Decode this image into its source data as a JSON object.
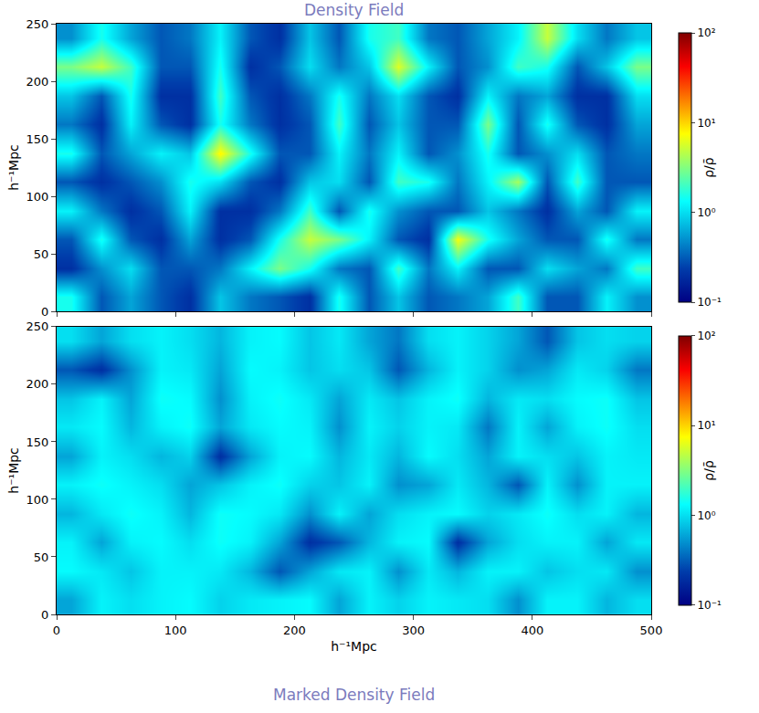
{
  "chart_data": [
    {
      "type": "heatmap",
      "title": "Density Field",
      "ylabel": "h⁻¹Mpc",
      "color": "Jet",
      "log": true,
      "tick_labels": "y",
      "xlim": [
        0,
        500
      ],
      "ylim": [
        0,
        250
      ],
      "xticks": [
        0,
        100,
        200,
        300,
        400,
        500
      ],
      "yticks": [
        0,
        50,
        100,
        150,
        200,
        250
      ],
      "x": [
        12.5,
        37.5,
        62.5,
        87.5,
        112.5,
        137.5,
        162.5,
        187.5,
        212.5,
        237.5,
        262.5,
        287.5,
        312.5,
        337.5,
        362.5,
        387.5,
        412.5,
        437.5,
        462.5,
        487.5
      ],
      "y": [
        12.5,
        37.5,
        62.5,
        87.5,
        112.5,
        137.5,
        162.5,
        187.5,
        212.5,
        237.5
      ],
      "cells": [
        [
          1.5,
          0.3,
          0.6,
          0.3,
          0.2,
          0.8,
          0.4,
          0.3,
          0.2,
          1.5,
          0.3,
          0.8,
          0.3,
          0.4,
          0.6,
          2,
          0.3,
          0.3,
          1.2,
          0.5
        ],
        [
          0.2,
          0.5,
          1,
          0.3,
          0.3,
          0.4,
          1.2,
          3,
          1.5,
          0.4,
          0.3,
          2,
          0.4,
          1.2,
          0.3,
          0.3,
          1,
          0.6,
          0.4,
          2
        ],
        [
          0.3,
          1.5,
          0.3,
          0.2,
          0.6,
          0.2,
          0.3,
          1.5,
          5,
          3,
          1.2,
          0.3,
          0.2,
          7,
          1.5,
          0.6,
          0.3,
          0.3,
          1.5,
          0.4
        ],
        [
          1.2,
          0.4,
          0.2,
          0.3,
          1.2,
          0.2,
          0.2,
          0.4,
          2,
          0.3,
          1.5,
          0.5,
          0.3,
          0.3,
          0.8,
          0.4,
          0.2,
          0.6,
          0.3,
          1.2
        ],
        [
          0.3,
          0.2,
          0.3,
          0.5,
          1.5,
          1,
          0.3,
          0.2,
          0.8,
          1,
          0.3,
          2,
          1.5,
          0.4,
          1.2,
          4,
          0.3,
          2,
          0.3,
          0.3
        ],
        [
          1.5,
          0.3,
          0.6,
          1.2,
          0.8,
          8,
          1.5,
          0.3,
          0.3,
          1.2,
          0.4,
          1.2,
          0.3,
          0.5,
          1.5,
          0.3,
          0.5,
          1,
          0.3,
          0.4
        ],
        [
          0.4,
          0.2,
          1.2,
          0.3,
          0.2,
          1.5,
          0.4,
          0.2,
          0.3,
          2,
          0.3,
          0.8,
          0.3,
          0.3,
          3,
          0.3,
          1.5,
          0.3,
          0.2,
          0.6
        ],
        [
          0.8,
          0.3,
          1.5,
          0.2,
          0.2,
          2,
          0.3,
          0.2,
          0.4,
          1.5,
          0.4,
          1,
          0.3,
          0.2,
          1.2,
          0.4,
          0.6,
          0.2,
          0.2,
          1
        ],
        [
          3,
          5,
          2,
          0.3,
          0.3,
          1.5,
          0.2,
          0.3,
          1,
          0.4,
          0.8,
          6,
          1.2,
          0.3,
          0.5,
          2,
          1.5,
          0.3,
          0.8,
          3
        ],
        [
          0.5,
          1.5,
          0.6,
          0.3,
          0.4,
          1.2,
          0.3,
          0.2,
          0.8,
          0.3,
          1.5,
          2,
          0.4,
          0.3,
          0.6,
          1.2,
          5,
          1,
          0.4,
          0.8
        ]
      ],
      "colorbar": {
        "label": "ρ/ρ̄",
        "range": [
          0.1,
          100
        ],
        "ticks": [
          {
            "value": 0.1,
            "label": "10⁻¹"
          },
          {
            "value": 1,
            "label": "10⁰"
          },
          {
            "value": 10,
            "label": "10¹"
          },
          {
            "value": 100,
            "label": "10²"
          }
        ]
      }
    },
    {
      "type": "heatmap",
      "title": "Marked Density Field",
      "xlabel": "h⁻¹Mpc",
      "ylabel": "h⁻¹Mpc",
      "color": "Jet",
      "log": true,
      "xlim": [
        0,
        500
      ],
      "ylim": [
        0,
        250
      ],
      "xticks": [
        0,
        100,
        200,
        300,
        400,
        500
      ],
      "yticks": [
        0,
        50,
        100,
        150,
        200,
        250
      ],
      "x": [
        12.5,
        37.5,
        62.5,
        87.5,
        112.5,
        137.5,
        162.5,
        187.5,
        212.5,
        237.5,
        262.5,
        287.5,
        312.5,
        337.5,
        362.5,
        387.5,
        412.5,
        437.5,
        462.5,
        487.5
      ],
      "y": [
        12.5,
        37.5,
        62.5,
        87.5,
        112.5,
        137.5,
        162.5,
        187.5,
        212.5,
        237.5
      ],
      "cells": [
        [
          0.6,
          1.2,
          1,
          1.2,
          1.3,
          0.9,
          1.1,
          1.2,
          1.3,
          0.6,
          1.2,
          0.9,
          1.2,
          1.1,
          1,
          0.5,
          1.2,
          1.2,
          0.7,
          1
        ],
        [
          1.3,
          1.1,
          0.8,
          1.2,
          1.2,
          1.1,
          0.7,
          0.3,
          0.6,
          1.1,
          1.2,
          0.5,
          1.1,
          0.7,
          1.2,
          1.2,
          0.8,
          1,
          1.1,
          0.5
        ],
        [
          1.2,
          0.6,
          1.2,
          1.3,
          1,
          1.4,
          1.2,
          0.6,
          0.2,
          0.3,
          0.7,
          1.2,
          1.3,
          0.2,
          0.6,
          1,
          1.2,
          1.2,
          0.6,
          1.1
        ],
        [
          0.7,
          1.1,
          1.4,
          1.2,
          0.7,
          1.4,
          1.3,
          1.1,
          0.5,
          1.2,
          0.6,
          1,
          1.2,
          1.3,
          0.9,
          1.1,
          1.4,
          1,
          1.2,
          0.7
        ],
        [
          1.2,
          1.4,
          1.2,
          1,
          0.6,
          0.8,
          1.2,
          1.4,
          0.9,
          0.8,
          1.2,
          0.5,
          0.6,
          1.1,
          0.7,
          0.3,
          1.2,
          0.5,
          1.2,
          1.2
        ],
        [
          0.6,
          1.2,
          1,
          0.7,
          0.9,
          0.2,
          0.6,
          1.2,
          1.3,
          0.7,
          1.1,
          0.7,
          1.3,
          1,
          0.6,
          1.2,
          1,
          0.8,
          1.2,
          1.1
        ],
        [
          1.1,
          1.3,
          0.7,
          1.2,
          1.4,
          0.6,
          1.1,
          1.3,
          1.2,
          0.5,
          1.2,
          0.9,
          1.2,
          1.1,
          0.4,
          1.2,
          0.6,
          1.2,
          1.4,
          1
        ],
        [
          0.8,
          1.2,
          0.6,
          1.4,
          1.3,
          0.5,
          1.2,
          1.4,
          1.1,
          0.6,
          1.1,
          0.8,
          1.2,
          1.4,
          0.7,
          1.1,
          1,
          1.3,
          1.4,
          0.8
        ],
        [
          0.3,
          0.2,
          0.5,
          1.2,
          1.1,
          0.6,
          1.3,
          1.2,
          0.8,
          1,
          0.8,
          0.3,
          0.7,
          1.2,
          0.9,
          0.5,
          0.6,
          1.1,
          0.9,
          0.4
        ],
        [
          1,
          0.6,
          1,
          1.2,
          1,
          0.7,
          1.2,
          1.3,
          0.8,
          1.1,
          0.6,
          0.4,
          1,
          1.2,
          0.9,
          0.6,
          0.3,
          0.8,
          1,
          0.9
        ]
      ],
      "colorbar": {
        "label": "ρ/ρ̄",
        "range": [
          0.1,
          100
        ],
        "ticks": [
          {
            "value": 0.1,
            "label": "10⁻¹"
          },
          {
            "value": 1,
            "label": "10⁰"
          },
          {
            "value": 10,
            "label": "10¹"
          },
          {
            "value": 100,
            "label": "10²"
          }
        ]
      }
    }
  ]
}
